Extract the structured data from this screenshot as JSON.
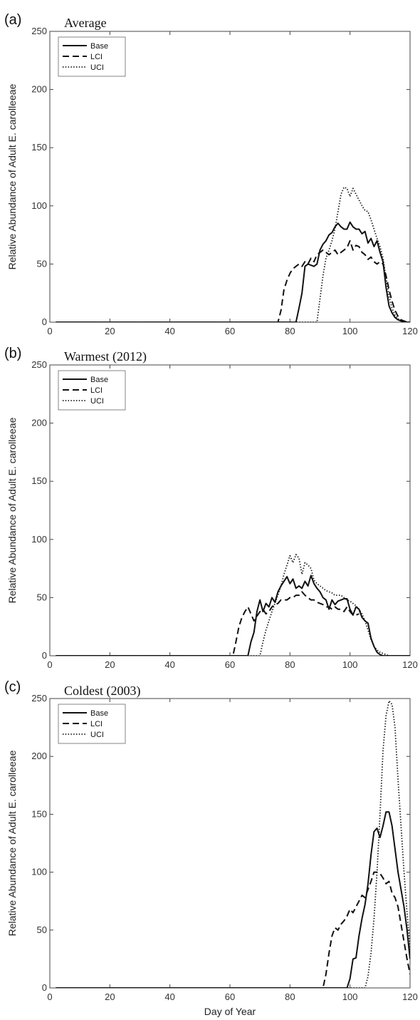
{
  "chart_data": [
    {
      "type": "line",
      "panel_label": "(a)",
      "title": "Average",
      "xlabel": "",
      "ylabel": "Relative Abundance of Adult E. carolleeae",
      "xlim": [
        0,
        120
      ],
      "ylim": [
        0,
        250
      ],
      "xticks": [
        0,
        20,
        40,
        60,
        80,
        100,
        120
      ],
      "yticks": [
        0,
        50,
        100,
        150,
        200,
        250
      ],
      "grid": false,
      "legend_position": "top-left",
      "series": [
        {
          "name": "Base",
          "style": "solid",
          "x": [
            2,
            82,
            83,
            84,
            85,
            86,
            87,
            88,
            89,
            90,
            91,
            92,
            93,
            94,
            95,
            96,
            97,
            98,
            99,
            100,
            101,
            102,
            103,
            104,
            105,
            106,
            107,
            108,
            109,
            110,
            111,
            112,
            113,
            114,
            115,
            116,
            117,
            118,
            119,
            120
          ],
          "y": [
            0,
            0,
            12,
            25,
            48,
            50,
            49,
            48,
            50,
            62,
            67,
            70,
            75,
            77,
            82,
            85,
            82,
            80,
            80,
            86,
            82,
            80,
            80,
            76,
            78,
            68,
            72,
            65,
            70,
            60,
            52,
            30,
            14,
            8,
            4,
            2,
            1,
            0,
            0,
            0
          ]
        },
        {
          "name": "LCI",
          "style": "dashed",
          "x": [
            2,
            76,
            77,
            78,
            79,
            80,
            81,
            82,
            83,
            84,
            85,
            86,
            87,
            88,
            89,
            90,
            91,
            92,
            93,
            94,
            95,
            96,
            97,
            98,
            99,
            100,
            101,
            102,
            103,
            104,
            105,
            106,
            107,
            108,
            109,
            110,
            111,
            112,
            113,
            114,
            115,
            116,
            117,
            118,
            119,
            120
          ],
          "y": [
            0,
            0,
            10,
            28,
            36,
            42,
            46,
            48,
            50,
            48,
            52,
            50,
            55,
            52,
            58,
            60,
            62,
            60,
            58,
            60,
            62,
            58,
            60,
            62,
            64,
            70,
            62,
            66,
            65,
            60,
            58,
            54,
            56,
            52,
            50,
            52,
            50,
            40,
            28,
            18,
            10,
            5,
            2,
            1,
            0,
            0
          ]
        },
        {
          "name": "UCI",
          "style": "dotted",
          "x": [
            2,
            89,
            90,
            91,
            92,
            93,
            94,
            95,
            96,
            97,
            98,
            99,
            100,
            101,
            102,
            103,
            104,
            105,
            106,
            107,
            108,
            109,
            110,
            111,
            112,
            113,
            114,
            115,
            116,
            117,
            118,
            119,
            120
          ],
          "y": [
            0,
            0,
            20,
            40,
            55,
            62,
            70,
            80,
            95,
            110,
            116,
            115,
            108,
            115,
            110,
            105,
            100,
            96,
            95,
            88,
            80,
            72,
            65,
            55,
            38,
            22,
            12,
            6,
            3,
            1,
            0,
            0,
            0
          ]
        }
      ]
    },
    {
      "type": "line",
      "panel_label": "(b)",
      "title": "Warmest (2012)",
      "xlabel": "",
      "ylabel": "Relative Abundance of Adult E. carolleeae",
      "xlim": [
        0,
        120
      ],
      "ylim": [
        0,
        250
      ],
      "xticks": [
        0,
        20,
        40,
        60,
        80,
        100,
        120
      ],
      "yticks": [
        0,
        50,
        100,
        150,
        200,
        250
      ],
      "grid": false,
      "legend_position": "top-left",
      "series": [
        {
          "name": "Base",
          "style": "solid",
          "x": [
            2,
            66,
            67,
            68,
            69,
            70,
            71,
            72,
            73,
            74,
            75,
            76,
            77,
            78,
            79,
            80,
            81,
            82,
            83,
            84,
            85,
            86,
            87,
            88,
            89,
            90,
            91,
            92,
            93,
            94,
            95,
            96,
            97,
            98,
            99,
            100,
            101,
            102,
            103,
            104,
            105,
            106,
            107,
            108,
            109,
            110,
            111,
            112,
            120
          ],
          "y": [
            0,
            0,
            12,
            20,
            38,
            48,
            38,
            45,
            42,
            50,
            46,
            55,
            60,
            64,
            68,
            62,
            66,
            58,
            60,
            58,
            64,
            60,
            69,
            62,
            58,
            55,
            50,
            48,
            40,
            48,
            44,
            47,
            48,
            49,
            49,
            40,
            35,
            42,
            40,
            33,
            30,
            28,
            15,
            8,
            3,
            1,
            0,
            0,
            0
          ]
        },
        {
          "name": "LCI",
          "style": "dashed",
          "x": [
            2,
            61,
            62,
            63,
            64,
            65,
            66,
            67,
            68,
            69,
            70,
            71,
            72,
            73,
            74,
            75,
            76,
            77,
            78,
            79,
            80,
            81,
            82,
            83,
            84,
            85,
            86,
            87,
            88,
            89,
            90,
            91,
            92,
            93,
            94,
            95,
            96,
            97,
            98,
            99,
            100,
            101,
            102,
            103
          ],
          "y": [
            0,
            0,
            12,
            25,
            33,
            38,
            42,
            36,
            30,
            34,
            38,
            40,
            36,
            38,
            42,
            44,
            45,
            48,
            48,
            48,
            50,
            50,
            52,
            52,
            55,
            52,
            50,
            48,
            48,
            46,
            45,
            44,
            42,
            42,
            40,
            42,
            40,
            40,
            38,
            42,
            38,
            35,
            35,
            36
          ]
        },
        {
          "name": "UCI",
          "style": "dotted",
          "x": [
            2,
            70,
            71,
            72,
            73,
            74,
            75,
            76,
            77,
            78,
            79,
            80,
            81,
            82,
            83,
            84,
            85,
            86,
            87,
            88,
            89,
            90,
            91,
            92,
            93,
            94,
            95,
            96,
            97,
            98,
            99,
            100,
            101,
            102,
            103,
            104,
            105,
            106,
            107,
            108,
            109,
            110,
            111,
            112,
            113,
            114,
            120
          ],
          "y": [
            0,
            0,
            12,
            22,
            30,
            38,
            45,
            52,
            60,
            70,
            78,
            86,
            80,
            87,
            84,
            70,
            80,
            78,
            75,
            65,
            62,
            60,
            58,
            56,
            55,
            54,
            52,
            52,
            52,
            50,
            48,
            47,
            45,
            43,
            40,
            36,
            30,
            22,
            14,
            8,
            5,
            3,
            2,
            1,
            0,
            0,
            0
          ]
        }
      ]
    },
    {
      "type": "line",
      "panel_label": "(c)",
      "title": "Coldest (2003)",
      "xlabel": "Day of Year",
      "ylabel": "Relative Abundance of Adult E. carolleeae",
      "xlim": [
        0,
        120
      ],
      "ylim": [
        0,
        250
      ],
      "xticks": [
        0,
        20,
        40,
        60,
        80,
        100,
        120
      ],
      "yticks": [
        0,
        50,
        100,
        150,
        200,
        250
      ],
      "grid": false,
      "legend_position": "top-left",
      "series": [
        {
          "name": "Base",
          "style": "solid",
          "x": [
            2,
            99,
            100,
            101,
            102,
            103,
            104,
            105,
            106,
            107,
            108,
            109,
            110,
            111,
            112,
            113,
            114,
            115,
            116,
            117,
            118,
            119,
            120
          ],
          "y": [
            0,
            0,
            8,
            25,
            26,
            45,
            60,
            72,
            90,
            115,
            135,
            138,
            130,
            140,
            152,
            152,
            140,
            120,
            100,
            85,
            70,
            50,
            25
          ]
        },
        {
          "name": "LCI",
          "style": "dashed",
          "x": [
            2,
            91,
            92,
            93,
            94,
            95,
            96,
            97,
            98,
            99,
            100,
            101,
            102,
            103,
            104,
            105,
            106,
            107,
            108,
            109,
            110,
            111,
            112,
            113,
            114,
            115,
            116,
            117,
            118,
            119,
            120
          ],
          "y": [
            0,
            0,
            12,
            30,
            45,
            52,
            50,
            55,
            58,
            62,
            68,
            65,
            70,
            75,
            80,
            78,
            85,
            92,
            100,
            100,
            99,
            95,
            90,
            92,
            82,
            78,
            70,
            55,
            40,
            25,
            12
          ]
        },
        {
          "name": "UCI",
          "style": "dotted",
          "x": [
            2,
            105,
            106,
            107,
            108,
            109,
            110,
            111,
            112,
            113,
            114,
            115,
            116,
            117,
            118,
            119,
            120
          ],
          "y": [
            0,
            0,
            10,
            30,
            60,
            100,
            150,
            205,
            235,
            248,
            245,
            225,
            180,
            140,
            100,
            65,
            35
          ]
        }
      ]
    }
  ]
}
